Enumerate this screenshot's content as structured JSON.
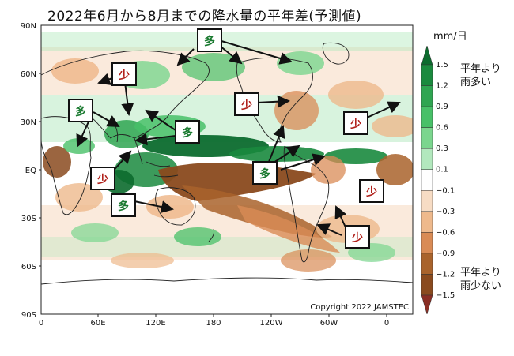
{
  "title": "2022年6月から8月までの降水量の平年差(予測値)",
  "map": {
    "lat_labels": [
      "90N",
      "60N",
      "30N",
      "EQ",
      "30S",
      "60S",
      "90S"
    ],
    "lon_labels": [
      "0",
      "60E",
      "120E",
      "180",
      "120W",
      "60W",
      "0"
    ],
    "copyright": "Copyright  2022  JAMSTEC"
  },
  "legend": {
    "unit": "mm/日",
    "ticks": [
      "1.5",
      "1.2",
      "0.9",
      "0.6",
      "0.3",
      "0.1",
      "−0.1",
      "−0.3",
      "−0.6",
      "−0.9",
      "−1.2",
      "−1.5"
    ],
    "colors": [
      "#0c6b2e",
      "#1a8a3e",
      "#2fa551",
      "#48c068",
      "#7bd68e",
      "#b2e8bd",
      "#ffffff",
      "#f7dcc4",
      "#eeb98c",
      "#d98b55",
      "#a9632c",
      "#8a4a1e",
      "#8a2e24"
    ],
    "top_note_1": "平年より",
    "top_note_2": "雨多い",
    "bottom_note_1": "平年より",
    "bottom_note_2": "雨少ない"
  },
  "annotations": {
    "more": "多",
    "less": "少",
    "more_color": "#1a7a30",
    "less_color": "#b0201a"
  }
}
